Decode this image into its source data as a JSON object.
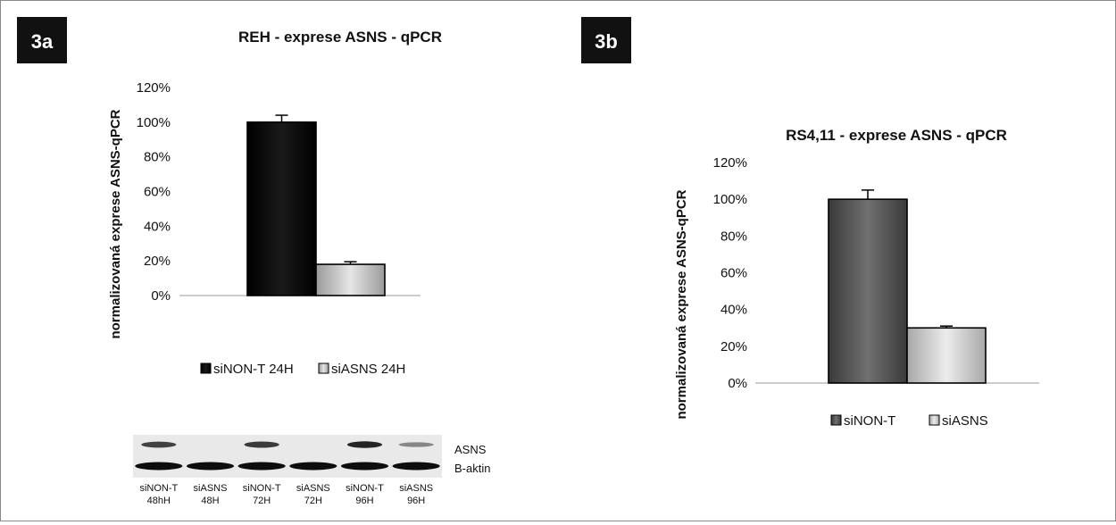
{
  "panels": {
    "a": {
      "label": "3a"
    },
    "b": {
      "label": "3b"
    }
  },
  "chart_data": [
    {
      "type": "bar",
      "panel": "3a",
      "title": "REH - exprese ASNS - qPCR",
      "ylabel": "normalizovaná exprese ASNS-qPCR",
      "xlabel": "",
      "yticks": [
        "0%",
        "20%",
        "40%",
        "60%",
        "80%",
        "100%",
        "120%"
      ],
      "ylim": [
        0,
        120
      ],
      "grid": false,
      "legend": "bottom",
      "series": [
        {
          "name": "siNON-T 24H",
          "value": 100,
          "error": 4,
          "color": "#111111"
        },
        {
          "name": "siASNS 24H",
          "value": 18,
          "error": 1.5,
          "color": "#bdbdbd"
        }
      ]
    },
    {
      "type": "bar",
      "panel": "3b",
      "title": "RS4,11 - exprese ASNS - qPCR",
      "ylabel": "normalizovaná exprese ASNS-qPCR",
      "xlabel": "",
      "yticks": [
        "0%",
        "20%",
        "40%",
        "60%",
        "80%",
        "100%",
        "120%"
      ],
      "ylim": [
        0,
        120
      ],
      "grid": false,
      "legend": "bottom",
      "series": [
        {
          "name": "siNON-T",
          "value": 100,
          "error": 5,
          "color": "#555555"
        },
        {
          "name": "siASNS",
          "value": 30,
          "error": 1,
          "color": "#c8c8c8"
        }
      ]
    }
  ],
  "blot": {
    "bands": [
      "ASNS",
      "B-aktin"
    ],
    "lanes": [
      {
        "line1": "siNON-T",
        "line2": "48hH",
        "asns": 0.75
      },
      {
        "line1": "siASNS",
        "line2": "48H",
        "asns": 0.0
      },
      {
        "line1": "siNON-T",
        "line2": "72H",
        "asns": 0.8
      },
      {
        "line1": "siASNS",
        "line2": "72H",
        "asns": 0.0
      },
      {
        "line1": "siNON-T",
        "line2": "96H",
        "asns": 0.95
      },
      {
        "line1": "siASNS",
        "line2": "96H",
        "asns": 0.3
      }
    ]
  }
}
